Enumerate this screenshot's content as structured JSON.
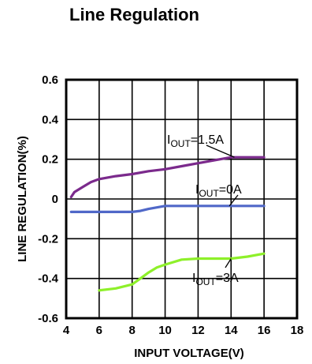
{
  "chart_data": {
    "type": "line",
    "title": "Line Regulation",
    "xlabel": "INPUT VOLTAGE(V)",
    "ylabel": "LINE REGULATION(%)",
    "xlim": [
      4,
      18
    ],
    "ylim": [
      -0.6,
      0.6
    ],
    "x_ticks": [
      "4",
      "6",
      "8",
      "10",
      "12",
      "14",
      "16",
      "18"
    ],
    "y_ticks": [
      "0.6",
      "0.4",
      "0.2",
      "0",
      "-0.2",
      "-0.4",
      "-0.6"
    ],
    "grid": true,
    "series": [
      {
        "name": "1.5A",
        "color": "#7b2a8c",
        "x": [
          4.3,
          4.5,
          5,
          5.5,
          6,
          7,
          8,
          9,
          10,
          11,
          12,
          13,
          14,
          15,
          16
        ],
        "y": [
          0.01,
          0.035,
          0.06,
          0.085,
          0.1,
          0.115,
          0.125,
          0.14,
          0.15,
          0.165,
          0.18,
          0.195,
          0.21,
          0.21,
          0.21
        ]
      },
      {
        "name": "0A",
        "color": "#5068c8",
        "x": [
          4.3,
          6,
          7,
          8,
          8.5,
          9,
          10,
          12,
          14,
          16
        ],
        "y": [
          -0.065,
          -0.065,
          -0.065,
          -0.065,
          -0.06,
          -0.05,
          -0.035,
          -0.035,
          -0.035,
          -0.035
        ]
      },
      {
        "name": "3A",
        "color": "#8ef02a",
        "x": [
          6,
          7,
          8,
          8.5,
          9,
          9.5,
          10,
          11,
          12,
          13,
          14,
          15,
          16
        ],
        "y": [
          -0.46,
          -0.45,
          -0.43,
          -0.4,
          -0.37,
          -0.345,
          -0.33,
          -0.305,
          -0.3,
          -0.3,
          -0.3,
          -0.29,
          -0.275
        ]
      }
    ],
    "annotations": [
      {
        "main": "I",
        "sub": "OUT",
        "rest": "=1.5A",
        "series": 0
      },
      {
        "main": "I",
        "sub": "OUT",
        "rest": "=0A",
        "series": 1
      },
      {
        "main": "I",
        "sub": "OUT",
        "rest": "=3A",
        "series": 2
      }
    ]
  }
}
